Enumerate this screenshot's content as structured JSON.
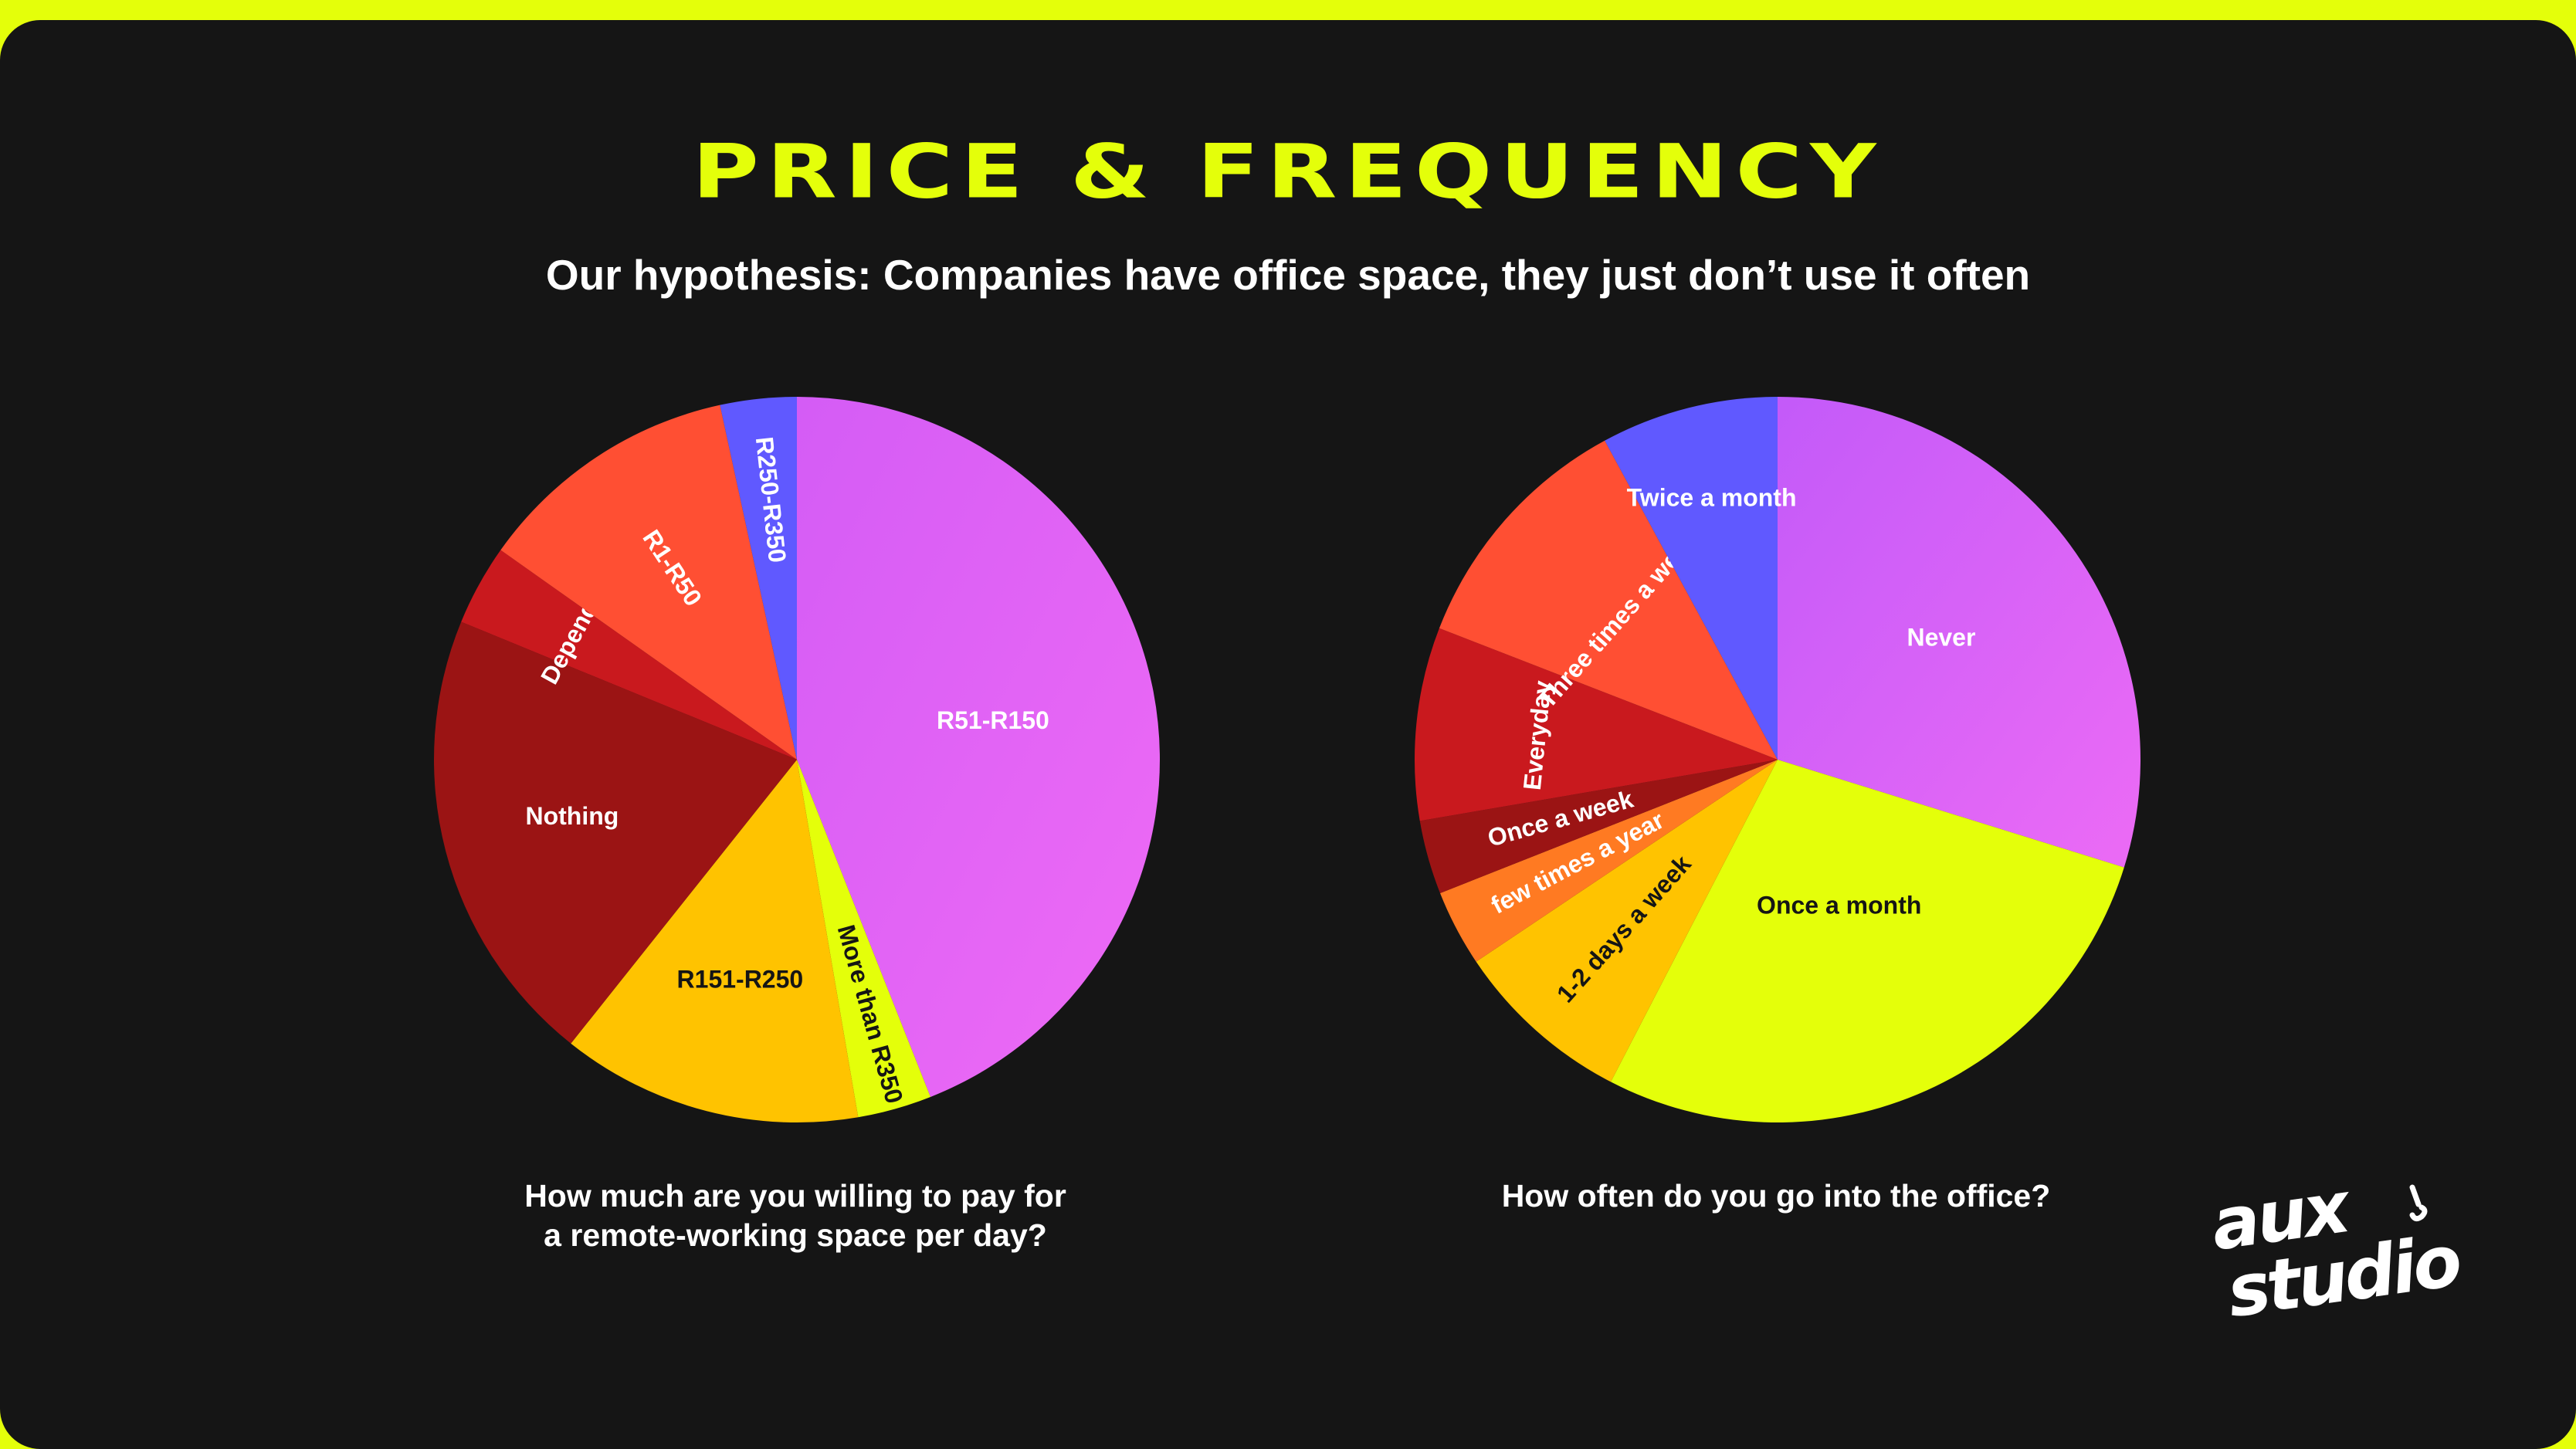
{
  "header": {
    "title": "PRICE & FREQUENCY",
    "subtitle": "Our hypothesis: Companies have office space, they just don’t use it often"
  },
  "brand": {
    "logo_line1": "aux",
    "logo_line2": "studio"
  },
  "colors": {
    "background": "#151515",
    "accent": "#e4ff0a",
    "text": "#ffffff"
  },
  "chart_data": [
    {
      "type": "pie",
      "title": "How much are you willing to pay for a remote-working space per day?",
      "title_lines": [
        "How much are you willing to pay for",
        "a remote-working space per day?"
      ],
      "start_angle_deg": 0,
      "direction": "clockwise",
      "slices": [
        {
          "label": "R51-R150",
          "value": 44.0,
          "color": "#d45cf5",
          "color2": "#ef6bf5",
          "label_color": "#ffffff",
          "label_rotation": "horizontal"
        },
        {
          "label": "More than R350",
          "value": 3.3,
          "color": "#e4ff0a",
          "label_color": "#151515",
          "label_rotation": "radial"
        },
        {
          "label": "R151-R250",
          "value": 13.4,
          "color": "#ffc300",
          "label_color": "#151515",
          "label_rotation": "horizontal"
        },
        {
          "label": "Nothing",
          "value": 20.5,
          "color": "#9b1414",
          "label_color": "#ffffff",
          "label_rotation": "horizontal"
        },
        {
          "label": "Depends",
          "value": 3.6,
          "color": "#c9191e",
          "label_color": "#ffffff",
          "label_rotation": "tangent"
        },
        {
          "label": "R1-R50",
          "value": 11.8,
          "color": "#ff4f33",
          "label_color": "#ffffff",
          "label_rotation": "radial"
        },
        {
          "label": "R250-R350",
          "value": 3.4,
          "color": "#6059ff",
          "label_color": "#ffffff",
          "label_rotation": "radial"
        }
      ]
    },
    {
      "type": "pie",
      "title": "How often do you go into the office?",
      "title_lines": [
        "How often do you go into the office?"
      ],
      "start_angle_deg": 0,
      "direction": "clockwise",
      "slices": [
        {
          "label": "Never",
          "value": 29.8,
          "color": "#c35af9",
          "color2": "#ec6bf5",
          "label_color": "#ffffff",
          "label_rotation": "horizontal"
        },
        {
          "label": "Once a month",
          "value": 27.8,
          "color": "#e4ff0a",
          "label_color": "#151515",
          "label_rotation": "horizontal"
        },
        {
          "label": "1-2 days a week",
          "value": 8.0,
          "color": "#ffc300",
          "label_color": "#151515",
          "label_rotation": "radial"
        },
        {
          "label": "few times a year",
          "value": 3.4,
          "color": "#ff7a22",
          "label_color": "#ffffff",
          "label_rotation": "radial"
        },
        {
          "label": "Once a week",
          "value": 3.3,
          "color": "#9b1414",
          "label_color": "#ffffff",
          "label_rotation": "radial"
        },
        {
          "label": "Everyday",
          "value": 8.6,
          "color": "#c9191e",
          "label_color": "#ffffff",
          "label_rotation": "tangent"
        },
        {
          "label": "Three times a week",
          "value": 11.2,
          "color": "#ff4f33",
          "label_color": "#ffffff",
          "label_rotation": "tangent"
        },
        {
          "label": "Twice a month",
          "value": 7.9,
          "color": "#6059ff",
          "label_color": "#ffffff",
          "label_rotation": "horizontal"
        }
      ]
    }
  ]
}
